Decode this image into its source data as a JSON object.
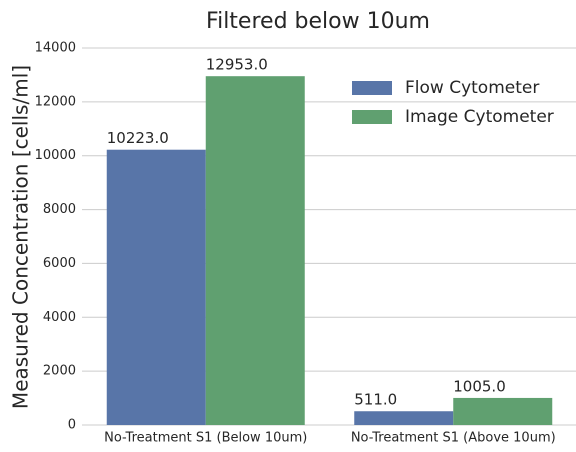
{
  "chart_data": {
    "type": "bar",
    "title": "Filtered below 10um",
    "ylabel": "Measured Concentration [cells/ml]",
    "categories": [
      "No-Treatment S1 (Below 10um)",
      "No-Treatment S1 (Above 10um)"
    ],
    "series": [
      {
        "name": "Flow Cytometer",
        "color": "#5875a8",
        "values": [
          10223,
          511
        ],
        "value_labels": [
          "10223.0",
          "511.0"
        ]
      },
      {
        "name": "Image Cytometer",
        "color": "#60a070",
        "values": [
          12953,
          1005
        ],
        "value_labels": [
          "12953.0",
          "1005.0"
        ]
      }
    ],
    "ylim": [
      0,
      14000
    ],
    "yticks": [
      0,
      2000,
      4000,
      6000,
      8000,
      10000,
      12000,
      14000
    ],
    "grid": true,
    "legend": "upper right"
  }
}
